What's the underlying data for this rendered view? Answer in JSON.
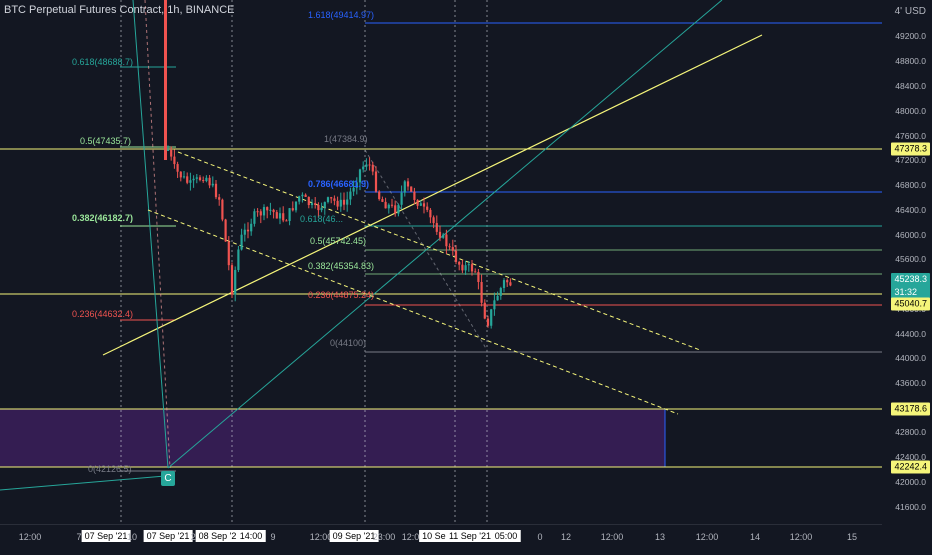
{
  "header": {
    "title": "BTC Perpetual Futures Contract, 1h, BINANCE",
    "currency": "USD"
  },
  "price_axis": {
    "ticks": [
      "49200.0",
      "48800.0",
      "48400.0",
      "48000.0",
      "47600.0",
      "47200.0",
      "46800.0",
      "46400.0",
      "46000.0",
      "45600.0",
      "44800.0",
      "44400.0",
      "44000.0",
      "43600.0",
      "42800.0",
      "42400.0",
      "42000.0",
      "41600.0"
    ],
    "badges": {
      "top_yellow": "47378.3",
      "current_price": "45238.3",
      "countdown": "31:32",
      "yellow_mid": "45040.7",
      "yellow_low1": "43178.6",
      "yellow_low2": "42242.4"
    }
  },
  "time_axis": {
    "labels": [
      "12:00",
      "7",
      "10",
      "22:00",
      "9",
      "12:00",
      "23:00",
      "12:00",
      "0",
      "12",
      "12:00",
      "13",
      "12:00",
      "14",
      "12:00",
      "15"
    ],
    "highlighted": [
      "07 Sep '21",
      "07 Sep '21",
      "08 Sep '21",
      "14:00",
      "09 Sep '21",
      "10 Sep '2",
      "11 Sep '21",
      "05:00"
    ]
  },
  "fib_levels": {
    "left": {
      "f618": "0.618(48688.7)",
      "f05": "0.5(47435.7)",
      "f382": "0.382(46182.7)",
      "f236": "0.236(44632.4)",
      "f0": "0(42126.5)"
    },
    "right": {
      "f1618": "1.618(49414.97)",
      "f1": "1(47384.9)",
      "f786": "0.786(46681.9)",
      "f618": "0.618(46...",
      "f05": "0.5(45742.45)",
      "f382": "0.382(45354.83)",
      "f236": "0.236(44875.24)",
      "f0": "0(44100)"
    }
  },
  "marker": {
    "label": "C"
  },
  "colors": {
    "background": "#131722",
    "yellow": "#f5f57a",
    "teal": "#26a69a",
    "red": "#ef5350",
    "blue": "#2962ff",
    "zone": "#3b1f5b"
  }
}
